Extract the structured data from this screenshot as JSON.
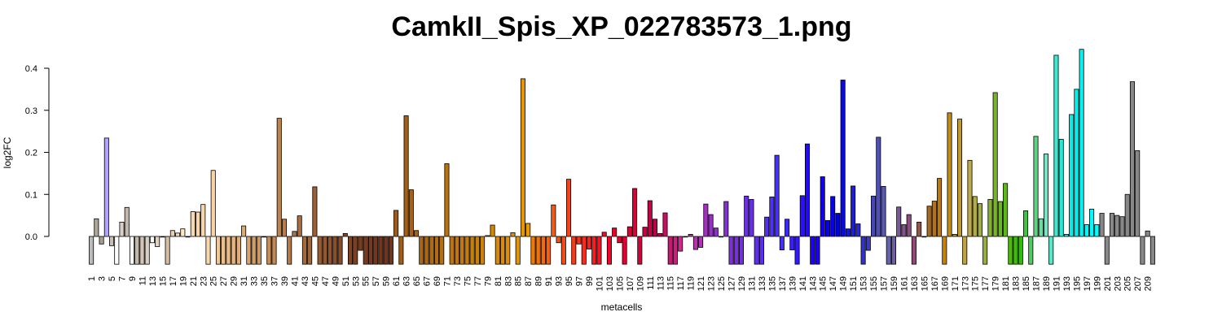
{
  "chart_data": {
    "type": "bar",
    "title": "CamkII_Spis_XP_022783573_1.png",
    "xlabel": "metacells",
    "ylabel": "log2FC",
    "ylim": [
      -0.07,
      0.45
    ],
    "yticks": [
      "0.0",
      "0.1",
      "0.2",
      "0.3",
      "0.4"
    ],
    "ytick_values": [
      0.0,
      0.1,
      0.2,
      0.3,
      0.4
    ],
    "x_tick_labels": [
      "1",
      "3",
      "5",
      "7",
      "9",
      "11",
      "13",
      "15",
      "17",
      "19",
      "21",
      "23",
      "25",
      "27",
      "29",
      "31",
      "33",
      "35",
      "37",
      "39",
      "41",
      "43",
      "45",
      "47",
      "49",
      "51",
      "53",
      "55",
      "57",
      "59",
      "61",
      "63",
      "65",
      "67",
      "69",
      "71",
      "73",
      "75",
      "77",
      "79",
      "81",
      "83",
      "85",
      "87",
      "89",
      "91",
      "93",
      "95",
      "97",
      "99",
      "101",
      "103",
      "105",
      "107",
      "109",
      "111",
      "113",
      "115",
      "117",
      "119",
      "121",
      "123",
      "125",
      "127",
      "129",
      "131",
      "133",
      "135",
      "137",
      "139",
      "141",
      "143",
      "145",
      "147",
      "149",
      "151",
      "153",
      "155",
      "157",
      "159",
      "161",
      "163",
      "165",
      "167",
      "169",
      "171",
      "173",
      "175",
      "177",
      "179",
      "181",
      "183",
      "185",
      "187",
      "189",
      "191",
      "193",
      "195",
      "197",
      "199",
      "201",
      "203",
      "205",
      "207",
      "209"
    ],
    "categories_count": 210,
    "values": [
      -0.066,
      0.042,
      -0.018,
      0.234,
      -0.022,
      -0.066,
      0.034,
      0.069,
      -0.066,
      -0.066,
      -0.066,
      -0.066,
      -0.015,
      -0.024,
      0.0,
      -0.066,
      0.014,
      0.008,
      0.018,
      0.0,
      0.059,
      0.058,
      0.076,
      -0.066,
      0.157,
      -0.066,
      -0.066,
      -0.066,
      -0.066,
      -0.066,
      0.025,
      -0.066,
      -0.066,
      -0.066,
      0.0,
      -0.066,
      -0.066,
      0.281,
      0.041,
      -0.066,
      0.012,
      0.049,
      -0.066,
      -0.066,
      0.118,
      -0.066,
      -0.066,
      -0.066,
      -0.066,
      -0.066,
      0.007,
      -0.066,
      -0.066,
      -0.033,
      -0.066,
      -0.066,
      -0.066,
      -0.066,
      -0.066,
      -0.066,
      0.062,
      -0.066,
      0.287,
      0.111,
      0.014,
      -0.066,
      -0.066,
      -0.066,
      -0.066,
      -0.066,
      0.173,
      -0.066,
      -0.066,
      -0.066,
      -0.066,
      -0.066,
      -0.066,
      -0.066,
      0.002,
      0.027,
      -0.066,
      -0.066,
      -0.066,
      0.009,
      -0.066,
      0.375,
      0.031,
      -0.066,
      -0.066,
      -0.066,
      -0.066,
      0.075,
      -0.015,
      -0.066,
      0.136,
      -0.066,
      -0.018,
      -0.066,
      -0.03,
      -0.066,
      -0.066,
      0.01,
      -0.066,
      0.02,
      -0.015,
      -0.066,
      0.023,
      0.114,
      -0.066,
      0.022,
      0.085,
      0.041,
      0.007,
      0.056,
      -0.066,
      -0.066,
      -0.035,
      0.0,
      0.005,
      -0.031,
      -0.026,
      0.077,
      0.052,
      0.02,
      0.0,
      0.083,
      -0.066,
      -0.066,
      -0.066,
      0.096,
      0.088,
      -0.066,
      -0.066,
      0.046,
      0.094,
      0.193,
      -0.032,
      0.041,
      -0.032,
      -0.066,
      0.097,
      0.22,
      -0.066,
      -0.066,
      0.142,
      0.038,
      0.095,
      0.055,
      0.372,
      0.018,
      0.12,
      0.03,
      -0.066,
      -0.033,
      0.096,
      0.236,
      0.119,
      -0.066,
      -0.066,
      0.07,
      0.028,
      0.052,
      -0.066,
      0.034,
      0.0,
      0.072,
      0.084,
      0.138,
      -0.066,
      0.294,
      0.005,
      0.279,
      -0.066,
      0.181,
      0.095,
      0.078,
      -0.066,
      0.088,
      0.342,
      0.083,
      0.126,
      -0.066,
      -0.066,
      -0.066,
      0.061,
      -0.066,
      0.238,
      0.042,
      0.196,
      -0.066,
      0.431,
      0.231,
      0.005,
      0.29,
      0.35,
      0.445,
      0.028,
      0.065,
      0.028,
      0.055,
      -0.066,
      0.055,
      0.05,
      0.047,
      0.1,
      0.368,
      0.204,
      -0.066,
      0.013,
      -0.066
    ],
    "colors": [
      "#bbbbbb",
      "#b0a69c",
      "#a89d91",
      "#b0a4ff",
      "#c9bfb4",
      "#ffffff",
      "#d8cfc6",
      "#c4b8ac",
      "#ffffff",
      "#c3b8ac",
      "#d2c5b8",
      "#d9cec3",
      "#ffffff",
      "#e1d3c3",
      "#f1e4d4",
      "#d6bea0",
      "#e6d0b0",
      "#f2dcbc",
      "#ffe6c8",
      "#ffffff",
      "#f6d8b4",
      "#f8d5ad",
      "#f9d6aa",
      "#fbd8aa",
      "#fcd2a0",
      "#f1c696",
      "#ecbf8d",
      "#e9bb87",
      "#e6b582",
      "#e1ae7b",
      "#dca874",
      "#d9a36e",
      "#d39e67",
      "#cf9862",
      "#cb925d",
      "#c58d58",
      "#c18854",
      "#bd8350",
      "#b87d4b",
      "#b47947",
      "#ae7343",
      "#aa6e40",
      "#a46a3c",
      "#a06539",
      "#9c6036",
      "#985c33",
      "#945830",
      "#8f532d",
      "#8b4f2a",
      "#874b28",
      "#844826",
      "#804424",
      "#7d4022",
      "#7a3d20",
      "#783b1f",
      "#76391e",
      "#74371d",
      "#73361d",
      "#72351c",
      "#71341c",
      "#9e5b1a",
      "#a05d19",
      "#a25f18",
      "#a56117",
      "#a86316",
      "#ab6615",
      "#ae6814",
      "#b16a13",
      "#b46c12",
      "#b76e11",
      "#ba7110",
      "#bd730f",
      "#c0760e",
      "#c3780d",
      "#c67b0c",
      "#c97d0b",
      "#cc800a",
      "#cf8209",
      "#d28508",
      "#d58707",
      "#d88a06",
      "#db8c05",
      "#de8f04",
      "#e19103",
      "#e49402",
      "#e79601",
      "#ea9900",
      "#ed7a05",
      "#f0720a",
      "#f26a0c",
      "#f4620e",
      "#f55a10",
      "#f65212",
      "#f74a14",
      "#f84216",
      "#f93a18",
      "#f9321a",
      "#fa2a1c",
      "#fa221e",
      "#fa1a20",
      "#f91222",
      "#f80a24",
      "#f70226",
      "#f20028",
      "#ec002c",
      "#e60030",
      "#e00034",
      "#da0038",
      "#d4003c",
      "#ce0040",
      "#c80044",
      "#c20048",
      "#bc004c",
      "#c41060",
      "#c81870",
      "#cc2080",
      "#d02890",
      "#d430a0",
      "#c830a8",
      "#bc30b0",
      "#b030b8",
      "#a430c0",
      "#9830c8",
      "#9030cc",
      "#8a30d0",
      "#8430d4",
      "#7e30d8",
      "#7830dc",
      "#7230e0",
      "#6c30e4",
      "#6630e8",
      "#6030ec",
      "#5a30f0",
      "#5430f4",
      "#4e30f8",
      "#4830fc",
      "#4230ff",
      "#3c28ff",
      "#3620ff",
      "#3018ff",
      "#2a10ff",
      "#2408ff",
      "#1e00ff",
      "#1800fa",
      "#1200f5",
      "#0c00f0",
      "#0600eb",
      "#0000e6",
      "#0a0ae0",
      "#1414da",
      "#1e1ed4",
      "#2828ce",
      "#3232c8",
      "#3c3cc2",
      "#4646bc",
      "#5050b6",
      "#5a5ab0",
      "#6464aa",
      "#6e5ea0",
      "#785896",
      "#82528c",
      "#8c4c82",
      "#964678",
      "#8c5a46",
      "#986238",
      "#a46a2a",
      "#b0721c",
      "#bc7a0e",
      "#c88200",
      "#c68a10",
      "#c49220",
      "#c29a30",
      "#c0a240",
      "#beaa50",
      "#b0ac48",
      "#a2ae40",
      "#94b038",
      "#86b230",
      "#78b428",
      "#6ab620",
      "#5cb818",
      "#4eba10",
      "#40bc08",
      "#32be00",
      "#40c440",
      "#4ecc60",
      "#5cd480",
      "#6adca0",
      "#78e4c0",
      "#5ce6c8",
      "#40e8d0",
      "#24eaD8",
      "#08ecE0",
      "#00eee8",
      "#00f0f0",
      "#00f4f4",
      "#00f8f8",
      "#00fcfc",
      "#00ffff"
    ]
  }
}
